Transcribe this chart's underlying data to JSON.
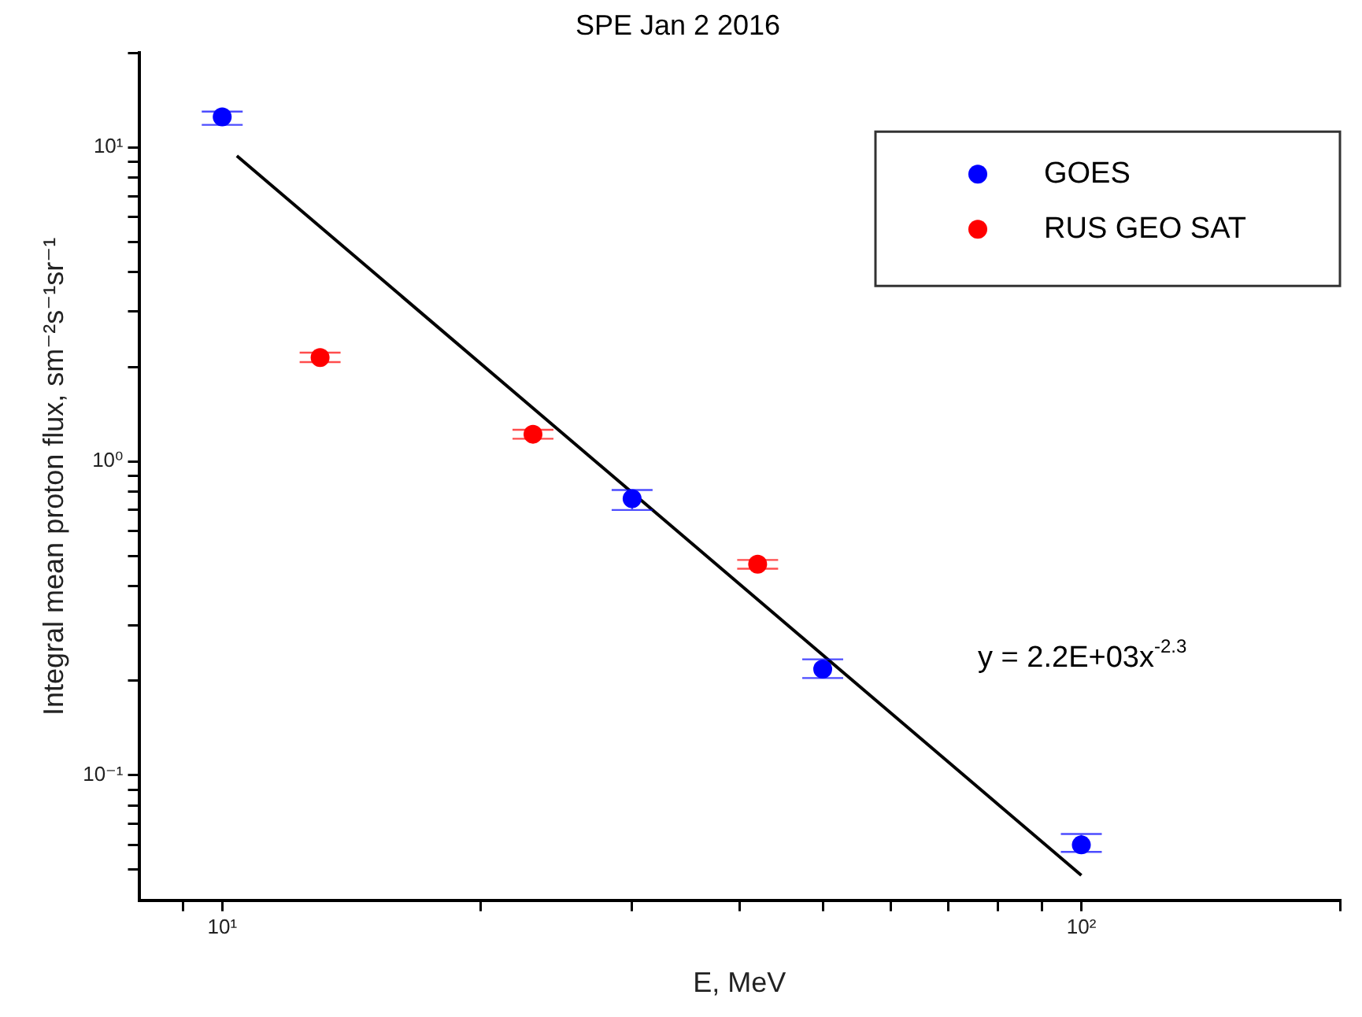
{
  "chart_data": {
    "type": "scatter",
    "title": "SPE Jan 2 2016",
    "xlabel": "E, MeV",
    "ylabel": "Integral mean proton flux, sm⁻²s⁻¹sr⁻¹",
    "annotations": [
      "y = 2.2E+03x$^{-2.3}$"
    ],
    "log": "xy",
    "grid": false,
    "legend": "top right",
    "marker": "circle",
    "xlim": [
      8,
      200
    ],
    "ylim": [
      0.04,
      20
    ],
    "xticks": [
      {
        "value": 9,
        "label": null
      },
      {
        "value": 10,
        "label": "10¹"
      },
      {
        "value": 20,
        "label": null
      },
      {
        "value": 30,
        "label": null
      },
      {
        "value": 40,
        "label": null
      },
      {
        "value": 50,
        "label": null
      },
      {
        "value": 60,
        "label": null
      },
      {
        "value": 70,
        "label": null
      },
      {
        "value": 80,
        "label": null
      },
      {
        "value": 90,
        "label": null
      },
      {
        "value": 100,
        "label": "10²"
      },
      {
        "value": 200,
        "label": null
      }
    ],
    "yticks": [
      {
        "value": 0.05,
        "label": null
      },
      {
        "value": 0.06,
        "label": null
      },
      {
        "value": 0.07,
        "label": null
      },
      {
        "value": 0.08,
        "label": null
      },
      {
        "value": 0.09,
        "label": null
      },
      {
        "value": 0.1,
        "label": "10⁻¹"
      },
      {
        "value": 0.2,
        "label": null
      },
      {
        "value": 0.3,
        "label": null
      },
      {
        "value": 0.4,
        "label": null
      },
      {
        "value": 0.5,
        "label": null
      },
      {
        "value": 0.6,
        "label": null
      },
      {
        "value": 0.7,
        "label": null
      },
      {
        "value": 0.8,
        "label": null
      },
      {
        "value": 0.9,
        "label": null
      },
      {
        "value": 1,
        "label": "10⁰"
      },
      {
        "value": 2,
        "label": null
      },
      {
        "value": 3,
        "label": null
      },
      {
        "value": 4,
        "label": null
      },
      {
        "value": 5,
        "label": null
      },
      {
        "value": 6,
        "label": null
      },
      {
        "value": 7,
        "label": null
      },
      {
        "value": 8,
        "label": null
      },
      {
        "value": 9,
        "label": null
      },
      {
        "value": 10,
        "label": "10¹"
      },
      {
        "value": 20,
        "label": null
      }
    ],
    "series": [
      {
        "name": "GOES",
        "type": "scatter",
        "color": "#0000ff",
        "x": [
          10,
          30,
          50,
          100
        ],
        "values": [
          12.5,
          0.76,
          0.218,
          0.06
        ],
        "errors": [
          [
            11.8,
            13.0
          ],
          [
            0.7,
            0.81
          ],
          [
            0.204,
            0.234
          ],
          [
            0.057,
            0.065
          ]
        ]
      },
      {
        "name": "RUS GEO SAT",
        "type": "scatter",
        "color": "#ff0000",
        "x": [
          13,
          23,
          42
        ],
        "values": [
          2.14,
          1.22,
          0.47
        ],
        "errors": [
          [
            2.07,
            2.22
          ],
          [
            1.18,
            1.26
          ],
          [
            0.455,
            0.485
          ]
        ]
      },
      {
        "type": "line",
        "color": "#000000",
        "x": [
          10.4,
          100
        ],
        "values": [
          9.4,
          0.048
        ],
        "marker": "none",
        "line_style": "solid"
      }
    ]
  }
}
